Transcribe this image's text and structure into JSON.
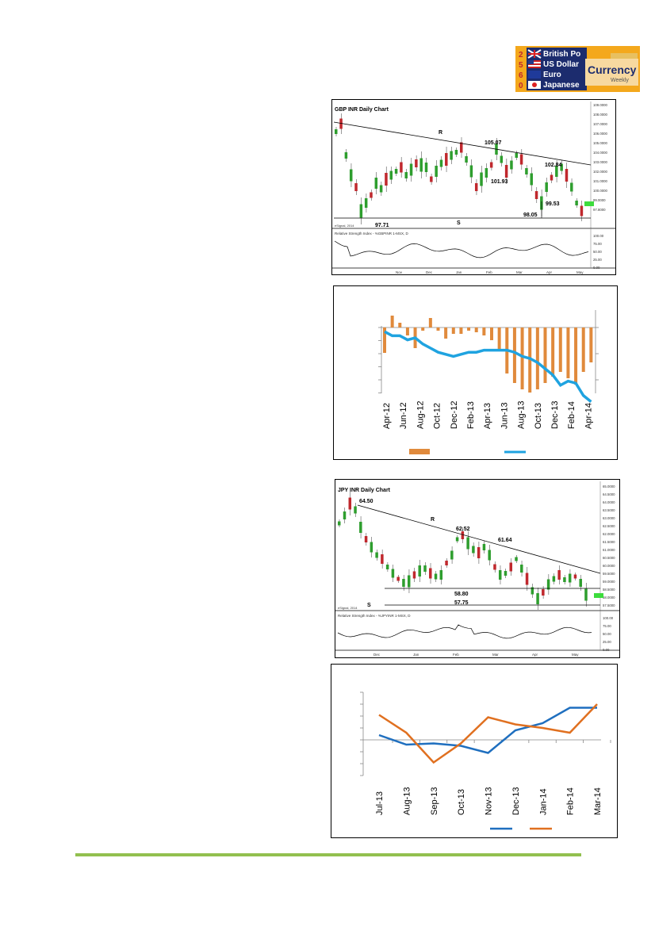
{
  "logo": {
    "rows": [
      "British Po",
      "US Dollar",
      "Euro",
      "Japanese"
    ],
    "side_digits": [
      "2",
      "5",
      "6",
      "0"
    ],
    "brand": "Currency",
    "sub": "Weekly",
    "bg_color": "#f4a81c"
  },
  "gbp_chart": {
    "title": "GBP INR Daily Chart",
    "annotations": [
      "R",
      "105.07",
      "101.93",
      "102.84",
      "99.53",
      "98.05",
      "97.71",
      "S"
    ],
    "price_ticks": [
      "109.0000",
      "108.0000",
      "107.0000",
      "106.0000",
      "105.0000",
      "104.0000",
      "103.0000",
      "102.0000",
      "101.0000",
      "100.0000",
      "99.0000",
      "97.8000"
    ],
    "months": [
      "Nov",
      "Dec",
      "Jan",
      "Feb",
      "Mar",
      "Apr",
      "May"
    ],
    "rsi_label": "Relative Strength Index - %GBPINR 1-MSX, D",
    "rsi_ticks": [
      "100.00",
      "75.00",
      "50.00",
      "25.00",
      "0.00"
    ],
    "source": "eSignal, 2014",
    "up_color": "#2e9e2e",
    "down_color": "#c0282d"
  },
  "bar_chart": {
    "chart_data": {
      "type": "bar",
      "categories": [
        "Apr-12",
        "Jun-12",
        "Aug-12",
        "Oct-12",
        "Dec-12",
        "Feb-13",
        "Apr-13",
        "Jun-13",
        "Aug-13",
        "Oct-13",
        "Dec-13",
        "Feb-14",
        "Apr-14"
      ],
      "bar_color": "#e08a3c",
      "line_color": "#1fa3e0"
    }
  },
  "jpy_chart": {
    "title": "JPY INR Daily Chart",
    "annotations": [
      "64.50",
      "R",
      "62.52",
      "61.64",
      "58.80",
      "57.75",
      "S"
    ],
    "price_ticks": [
      "65.0000",
      "64.5000",
      "64.0000",
      "63.5000",
      "63.0000",
      "62.5000",
      "62.0000",
      "61.5000",
      "61.0000",
      "60.5000",
      "60.0000",
      "59.5000",
      "59.0000",
      "58.5000",
      "58.0000",
      "57.5000"
    ],
    "months": [
      "Dec",
      "Jan",
      "Feb",
      "Mar",
      "Apr",
      "May"
    ],
    "rsi_label": "Relative Strength Index - %JPYINR 1-MSX, D",
    "rsi_ticks": [
      "100.00",
      "75.00",
      "50.00",
      "25.00",
      "0.00"
    ],
    "source": "eSignal, 2014"
  },
  "line_chart": {
    "chart_data": {
      "type": "line",
      "categories": [
        "Jul-13",
        "Aug-13",
        "Sep-13",
        "Oct-13",
        "Nov-13",
        "Dec-13",
        "Jan-14",
        "Feb-14",
        "Mar-14"
      ],
      "series": [
        {
          "color": "#1f6fbf",
          "values": [
            0.4,
            -0.4,
            -0.3,
            -0.5,
            -1.1,
            0.8,
            1.4,
            2.7,
            2.7
          ]
        },
        {
          "color": "#e07020",
          "values": [
            2.1,
            0.6,
            -1.9,
            -0.3,
            1.9,
            1.3,
            1.0,
            0.6,
            3.0
          ]
        }
      ],
      "ylim": [
        -3,
        4
      ]
    }
  }
}
